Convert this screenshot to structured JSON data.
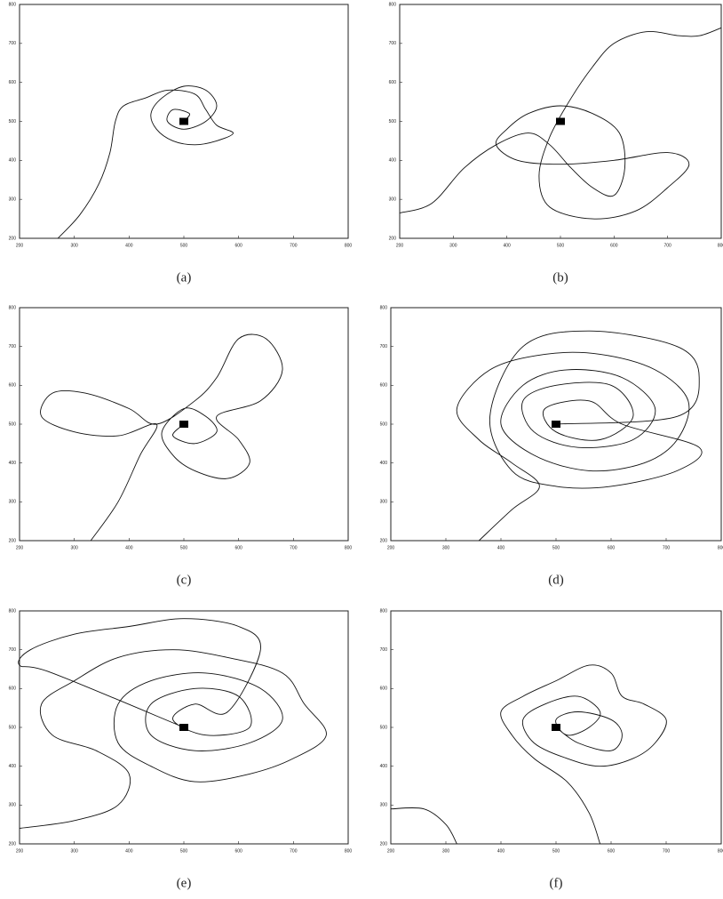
{
  "chart_data": [
    {
      "type": "line",
      "caption": "(a)",
      "xlim": [
        200,
        800
      ],
      "ylim": [
        200,
        800
      ],
      "xticks": [
        200,
        300,
        400,
        500,
        600,
        700,
        800
      ],
      "yticks": [
        200,
        300,
        400,
        500,
        600,
        700,
        800
      ],
      "color": "#111",
      "marker": {
        "x": 500,
        "y": 500
      },
      "series": [
        {
          "x": [
            270,
            310,
            345,
            365,
            375,
            390,
            430,
            470,
            520,
            540,
            560,
            590,
            560,
            520,
            480,
            450,
            440,
            460,
            500,
            540,
            560,
            540,
            500,
            470,
            480,
            510,
            500
          ],
          "values": [
            200,
            260,
            340,
            420,
            500,
            540,
            560,
            580,
            570,
            530,
            490,
            470,
            450,
            440,
            450,
            480,
            520,
            560,
            590,
            580,
            540,
            500,
            480,
            500,
            530,
            520,
            500
          ]
        }
      ]
    },
    {
      "type": "line",
      "caption": "(b)",
      "xlim": [
        200,
        800
      ],
      "ylim": [
        200,
        800
      ],
      "xticks": [
        200,
        300,
        400,
        500,
        600,
        700,
        800
      ],
      "yticks": [
        200,
        300,
        400,
        500,
        600,
        700,
        800
      ],
      "color": "#111",
      "marker": {
        "x": 500,
        "y": 500
      },
      "series": [
        {
          "x": [
            200,
            260,
            320,
            380,
            440,
            480,
            520,
            560,
            600,
            620,
            610,
            560,
            500,
            440,
            400,
            380,
            420,
            500,
            600,
            700,
            740,
            700,
            640,
            560,
            480,
            460,
            480,
            520,
            560,
            600,
            660,
            720,
            760,
            800
          ],
          "values": [
            265,
            290,
            380,
            440,
            470,
            440,
            380,
            330,
            310,
            380,
            470,
            520,
            540,
            520,
            480,
            440,
            400,
            390,
            400,
            420,
            390,
            330,
            270,
            250,
            280,
            360,
            460,
            560,
            640,
            700,
            730,
            720,
            720,
            740
          ]
        }
      ]
    },
    {
      "type": "line",
      "caption": "(c)",
      "xlim": [
        200,
        800
      ],
      "ylim": [
        200,
        800
      ],
      "xticks": [
        200,
        300,
        400,
        500,
        600,
        700,
        800
      ],
      "yticks": [
        200,
        300,
        400,
        500,
        600,
        700,
        800
      ],
      "color": "#111",
      "marker": {
        "x": 500,
        "y": 500
      },
      "series": [
        {
          "x": [
            330,
            380,
            420,
            450,
            380,
            300,
            240,
            260,
            320,
            400,
            450,
            520,
            560,
            600,
            650,
            680,
            640,
            560,
            600,
            620,
            580,
            520,
            480,
            460,
            500,
            540,
            560,
            520,
            480,
            500
          ],
          "values": [
            200,
            300,
            420,
            500,
            470,
            480,
            520,
            580,
            580,
            540,
            500,
            560,
            620,
            720,
            720,
            640,
            560,
            520,
            460,
            400,
            360,
            380,
            420,
            480,
            540,
            520,
            480,
            450,
            470,
            500
          ]
        }
      ]
    },
    {
      "type": "line",
      "caption": "(d)",
      "xlim": [
        200,
        800
      ],
      "ylim": [
        200,
        800
      ],
      "xticks": [
        200,
        300,
        400,
        500,
        600,
        700,
        800
      ],
      "yticks": [
        200,
        300,
        400,
        500,
        600,
        700,
        800
      ],
      "color": "#111",
      "marker": {
        "x": 500,
        "y": 500
      },
      "series": [
        {
          "x": [
            360,
            420,
            470,
            420,
            360,
            320,
            380,
            480,
            580,
            680,
            740,
            720,
            660,
            560,
            460,
            400,
            440,
            520,
            620,
            680,
            640,
            540,
            460,
            440,
            500,
            600,
            640,
            580,
            500,
            480,
            560,
            620,
            760,
            720,
            600,
            500,
            420,
            380,
            440,
            560,
            720,
            760,
            720,
            500
          ],
          "values": [
            200,
            280,
            340,
            400,
            460,
            540,
            640,
            680,
            680,
            640,
            560,
            460,
            400,
            380,
            420,
            500,
            600,
            640,
            620,
            540,
            460,
            440,
            480,
            560,
            600,
            600,
            520,
            460,
            480,
            540,
            560,
            500,
            440,
            380,
            340,
            340,
            380,
            520,
            700,
            740,
            700,
            620,
            520,
            500
          ]
        }
      ]
    },
    {
      "type": "line",
      "caption": "(e)",
      "xlim": [
        200,
        800
      ],
      "ylim": [
        200,
        800
      ],
      "xticks": [
        200,
        300,
        400,
        500,
        600,
        700,
        800
      ],
      "yticks": [
        200,
        300,
        400,
        500,
        600,
        700,
        800
      ],
      "color": "#111",
      "marker": {
        "x": 500,
        "y": 500
      },
      "series": [
        {
          "x": [
            200,
            300,
            380,
            400,
            340,
            260,
            240,
            300,
            380,
            480,
            580,
            680,
            720,
            760,
            700,
            620,
            520,
            440,
            380,
            380,
            440,
            540,
            640,
            680,
            620,
            520,
            440,
            440,
            520,
            600,
            620,
            540,
            480,
            520,
            580,
            640,
            600,
            500,
            400,
            300,
            220,
            200,
            260,
            500
          ],
          "values": [
            240,
            260,
            300,
            380,
            440,
            480,
            560,
            620,
            680,
            700,
            680,
            640,
            560,
            480,
            420,
            380,
            360,
            400,
            460,
            560,
            620,
            640,
            600,
            520,
            460,
            440,
            480,
            560,
            600,
            580,
            500,
            480,
            520,
            560,
            540,
            700,
            760,
            780,
            760,
            740,
            700,
            660,
            640,
            500
          ]
        }
      ]
    },
    {
      "type": "line",
      "caption": "(f)",
      "xlim": [
        200,
        800
      ],
      "ylim": [
        200,
        800
      ],
      "xticks": [
        200,
        300,
        400,
        500,
        600,
        700,
        800
      ],
      "yticks": [
        200,
        300,
        400,
        500,
        600,
        700,
        800
      ],
      "color": "#111",
      "marker": {
        "x": 500,
        "y": 500
      },
      "series": [
        {
          "x": [
            200,
            260,
            300,
            320,
            null,
            580,
            560,
            520,
            460,
            420,
            400,
            440,
            500,
            560,
            600,
            620,
            660,
            700,
            680,
            640,
            580,
            520,
            460,
            440,
            480,
            540,
            580,
            560,
            520,
            500,
            540,
            600,
            620,
            600,
            540,
            500
          ],
          "values": [
            290,
            290,
            250,
            200,
            null,
            200,
            280,
            360,
            420,
            480,
            540,
            580,
            620,
            660,
            640,
            580,
            560,
            520,
            460,
            420,
            400,
            420,
            460,
            520,
            560,
            580,
            540,
            500,
            480,
            520,
            540,
            520,
            480,
            440,
            460,
            500
          ]
        }
      ]
    }
  ]
}
